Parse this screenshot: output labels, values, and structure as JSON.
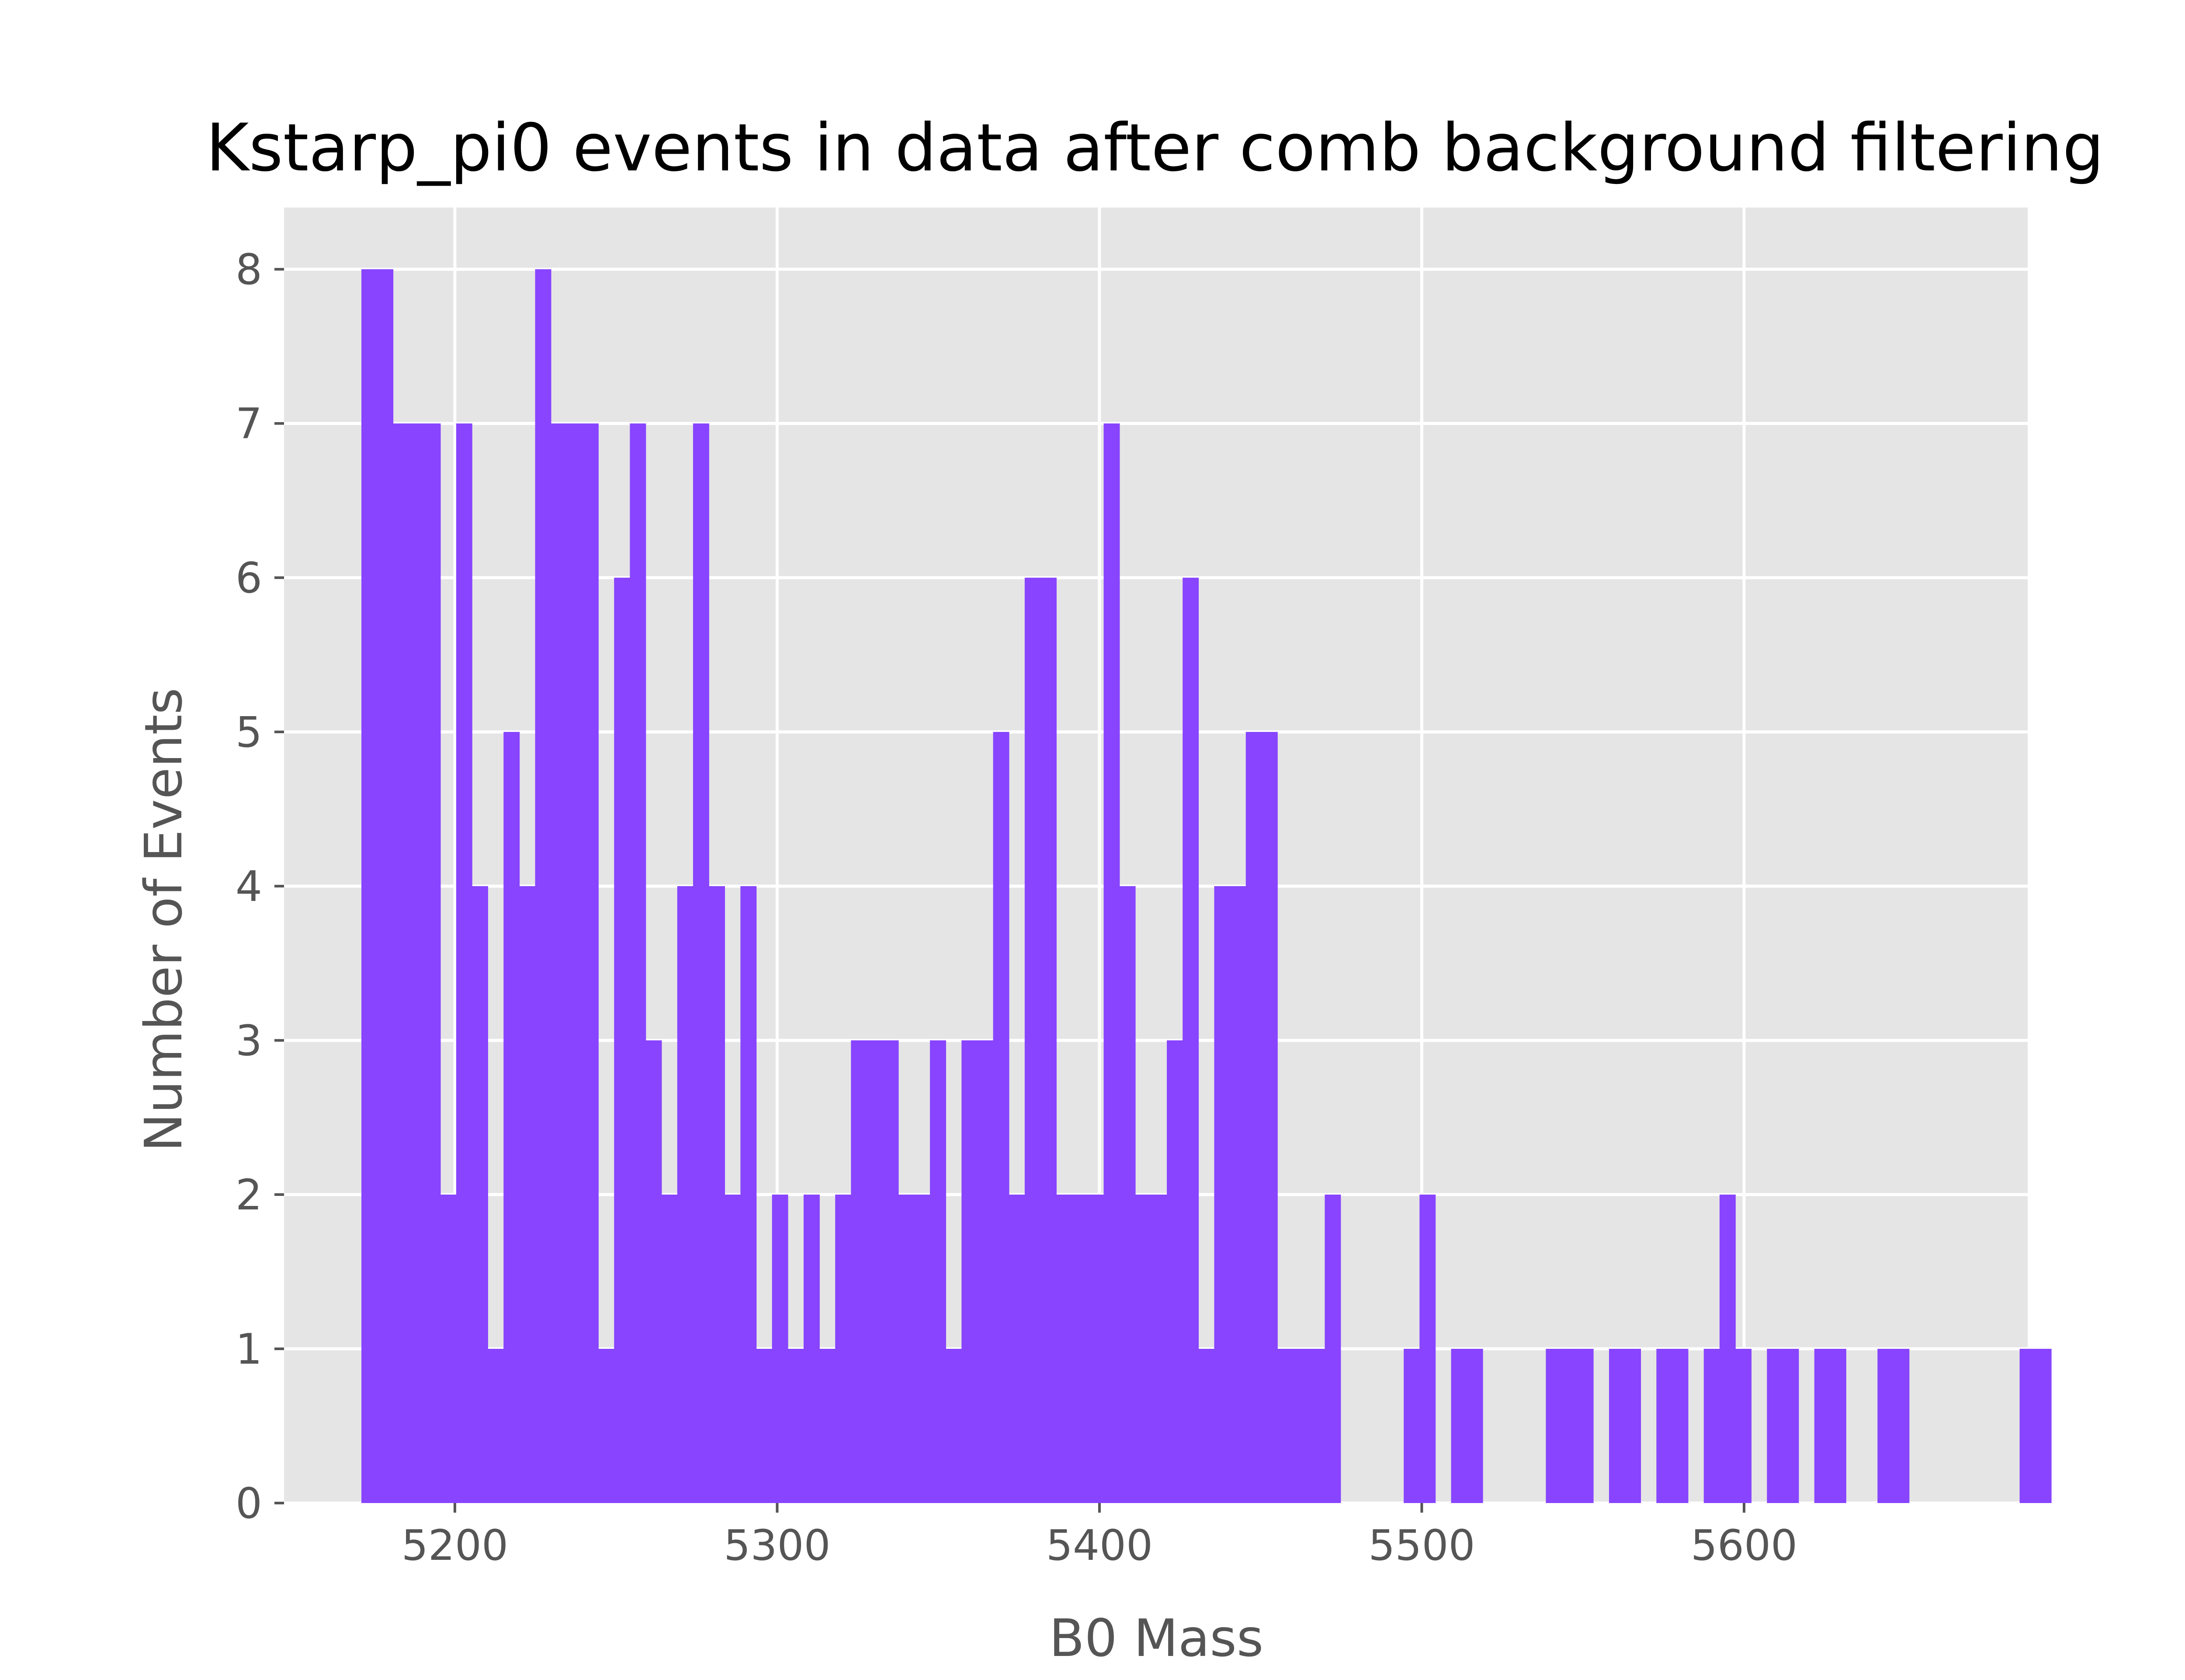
{
  "chart_data": {
    "type": "bar",
    "title": "Kstarp_pi0 events in data after comb background filtering",
    "xlabel": "B0 Mass",
    "ylabel": "Number of Events",
    "xlim": [
      5147,
      5688
    ],
    "ylim": [
      0,
      8.4
    ],
    "xticks": [
      "5200",
      "5300",
      "5400",
      "5500",
      "5600"
    ],
    "yticks": [
      "0",
      "1",
      "2",
      "3",
      "4",
      "5",
      "6",
      "7",
      "8"
    ],
    "grid": true,
    "bar_color": "#8844FF",
    "background_color": "#E5E5E5",
    "bin_start": 5171,
    "bin_width": 4.9,
    "values": [
      8,
      8,
      7,
      7,
      7,
      2,
      7,
      4,
      1,
      5,
      4,
      8,
      7,
      7,
      7,
      1,
      6,
      7,
      3,
      2,
      4,
      7,
      4,
      2,
      4,
      1,
      2,
      1,
      2,
      1,
      2,
      3,
      3,
      3,
      2,
      2,
      3,
      1,
      3,
      3,
      5,
      2,
      6,
      6,
      2,
      2,
      2,
      7,
      4,
      2,
      2,
      3,
      6,
      1,
      4,
      4,
      5,
      5,
      1,
      1,
      1,
      2,
      0,
      0,
      0,
      0,
      1,
      2,
      0,
      1,
      1,
      0,
      0,
      0,
      0,
      1,
      1,
      1,
      0,
      1,
      1,
      0,
      1,
      1,
      0,
      1,
      2,
      1,
      0,
      1,
      1,
      0,
      1,
      1,
      0,
      0,
      1,
      1,
      0,
      0,
      0,
      0,
      0,
      0,
      0,
      1,
      1
    ]
  }
}
